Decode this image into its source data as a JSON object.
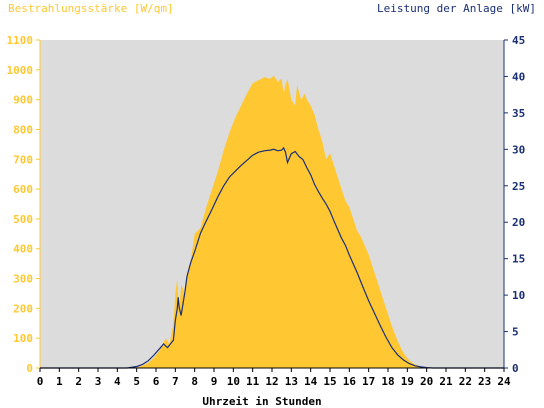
{
  "colors": {
    "irradiance": "#ffc832",
    "power": "#1a2f73",
    "plot_bg": "#dcdcdc",
    "left_axis": "#ffc832",
    "right_axis": "#1a2f73",
    "x_axis": "#000000"
  },
  "chart_data": {
    "type": "area",
    "title_left": "Bestrahlungsstärke [W/qm]",
    "title_right": "Leistung der Anlage [kW]",
    "xlabel": "Uhrzeit in Stunden",
    "xlim": [
      0,
      24
    ],
    "x_ticks": [
      "0",
      "1",
      "2",
      "3",
      "4",
      "5",
      "6",
      "7",
      "8",
      "9",
      "10",
      "11",
      "12",
      "13",
      "14",
      "15",
      "16",
      "17",
      "18",
      "19",
      "20",
      "21",
      "22",
      "23",
      "24"
    ],
    "y_left": {
      "lim": [
        0,
        1100
      ],
      "ticks": [
        "0",
        "100",
        "200",
        "300",
        "400",
        "500",
        "600",
        "700",
        "800",
        "900",
        "1000",
        "1100"
      ]
    },
    "y_right": {
      "lim": [
        0,
        45
      ],
      "ticks": [
        "0",
        "5",
        "10",
        "15",
        "20",
        "25",
        "30",
        "35",
        "40",
        "45"
      ]
    },
    "series": [
      {
        "axis": "left",
        "style": "area",
        "x": [
          0,
          4.5,
          5,
          5.3,
          5.6,
          5.9,
          6.2,
          6.5,
          6.7,
          6.9,
          7.0,
          7.1,
          7.2,
          7.3,
          7.5,
          7.6,
          7.8,
          8.0,
          8.3,
          8.6,
          8.9,
          9.2,
          9.5,
          9.8,
          10.1,
          10.4,
          10.7,
          11.0,
          11.3,
          11.6,
          11.9,
          12.1,
          12.3,
          12.5,
          12.6,
          12.7,
          12.8,
          13.0,
          13.2,
          13.3,
          13.5,
          13.7,
          13.8,
          14.0,
          14.2,
          14.4,
          14.6,
          14.8,
          15.0,
          15.2,
          15.4,
          15.6,
          15.8,
          16.0,
          16.2,
          16.4,
          16.6,
          16.8,
          17.0,
          17.3,
          17.6,
          17.9,
          18.2,
          18.5,
          18.8,
          19.1,
          19.4,
          19.7,
          20.0,
          20.2,
          20.5,
          21,
          24
        ],
        "y": [
          0,
          0,
          2,
          8,
          18,
          35,
          60,
          100,
          80,
          150,
          250,
          300,
          180,
          280,
          250,
          320,
          360,
          450,
          470,
          540,
          600,
          660,
          730,
          790,
          840,
          880,
          920,
          955,
          965,
          975,
          970,
          980,
          960,
          970,
          920,
          950,
          970,
          900,
          880,
          950,
          900,
          920,
          900,
          880,
          850,
          800,
          760,
          700,
          720,
          680,
          640,
          600,
          560,
          540,
          500,
          460,
          440,
          410,
          380,
          320,
          260,
          200,
          140,
          90,
          50,
          25,
          12,
          4,
          0,
          0,
          0,
          0,
          0
        ]
      },
      {
        "axis": "right",
        "style": "line",
        "x": [
          0,
          4.5,
          5,
          5.3,
          5.6,
          5.9,
          6.2,
          6.4,
          6.5,
          6.6,
          6.8,
          6.9,
          7.0,
          7.1,
          7.15,
          7.2,
          7.3,
          7.5,
          7.6,
          7.8,
          8.0,
          8.3,
          8.6,
          8.9,
          9.2,
          9.5,
          9.8,
          10.1,
          10.4,
          10.7,
          11.0,
          11.3,
          11.6,
          11.9,
          12.1,
          12.3,
          12.5,
          12.6,
          12.7,
          12.8,
          13.0,
          13.2,
          13.4,
          13.6,
          13.8,
          14.0,
          14.2,
          14.4,
          14.6,
          14.8,
          15.0,
          15.2,
          15.4,
          15.6,
          15.8,
          16.0,
          16.2,
          16.4,
          16.6,
          16.8,
          17.0,
          17.3,
          17.6,
          17.9,
          18.2,
          18.5,
          18.8,
          19.1,
          19.4,
          19.7,
          20.0,
          20.3,
          24
        ],
        "y": [
          0,
          0,
          0.2,
          0.5,
          1,
          1.8,
          2.7,
          3.3,
          3.0,
          2.8,
          3.5,
          3.8,
          6.5,
          8.2,
          9.7,
          8.3,
          7.2,
          10.5,
          12.5,
          14.5,
          16.0,
          18.5,
          20.2,
          21.8,
          23.5,
          25.0,
          26.2,
          27.0,
          27.8,
          28.5,
          29.2,
          29.6,
          29.8,
          29.9,
          30.0,
          29.8,
          29.9,
          30.2,
          29.6,
          28.2,
          29.4,
          29.7,
          29.0,
          28.6,
          27.5,
          26.5,
          25.2,
          24.2,
          23.3,
          22.5,
          21.5,
          20.2,
          19.0,
          17.8,
          16.8,
          15.5,
          14.3,
          13.1,
          11.8,
          10.5,
          9.2,
          7.5,
          5.8,
          4.2,
          2.8,
          1.8,
          1.1,
          0.6,
          0.3,
          0.15,
          0.05,
          0,
          0
        ]
      }
    ],
    "grid": false,
    "legend": "none"
  }
}
